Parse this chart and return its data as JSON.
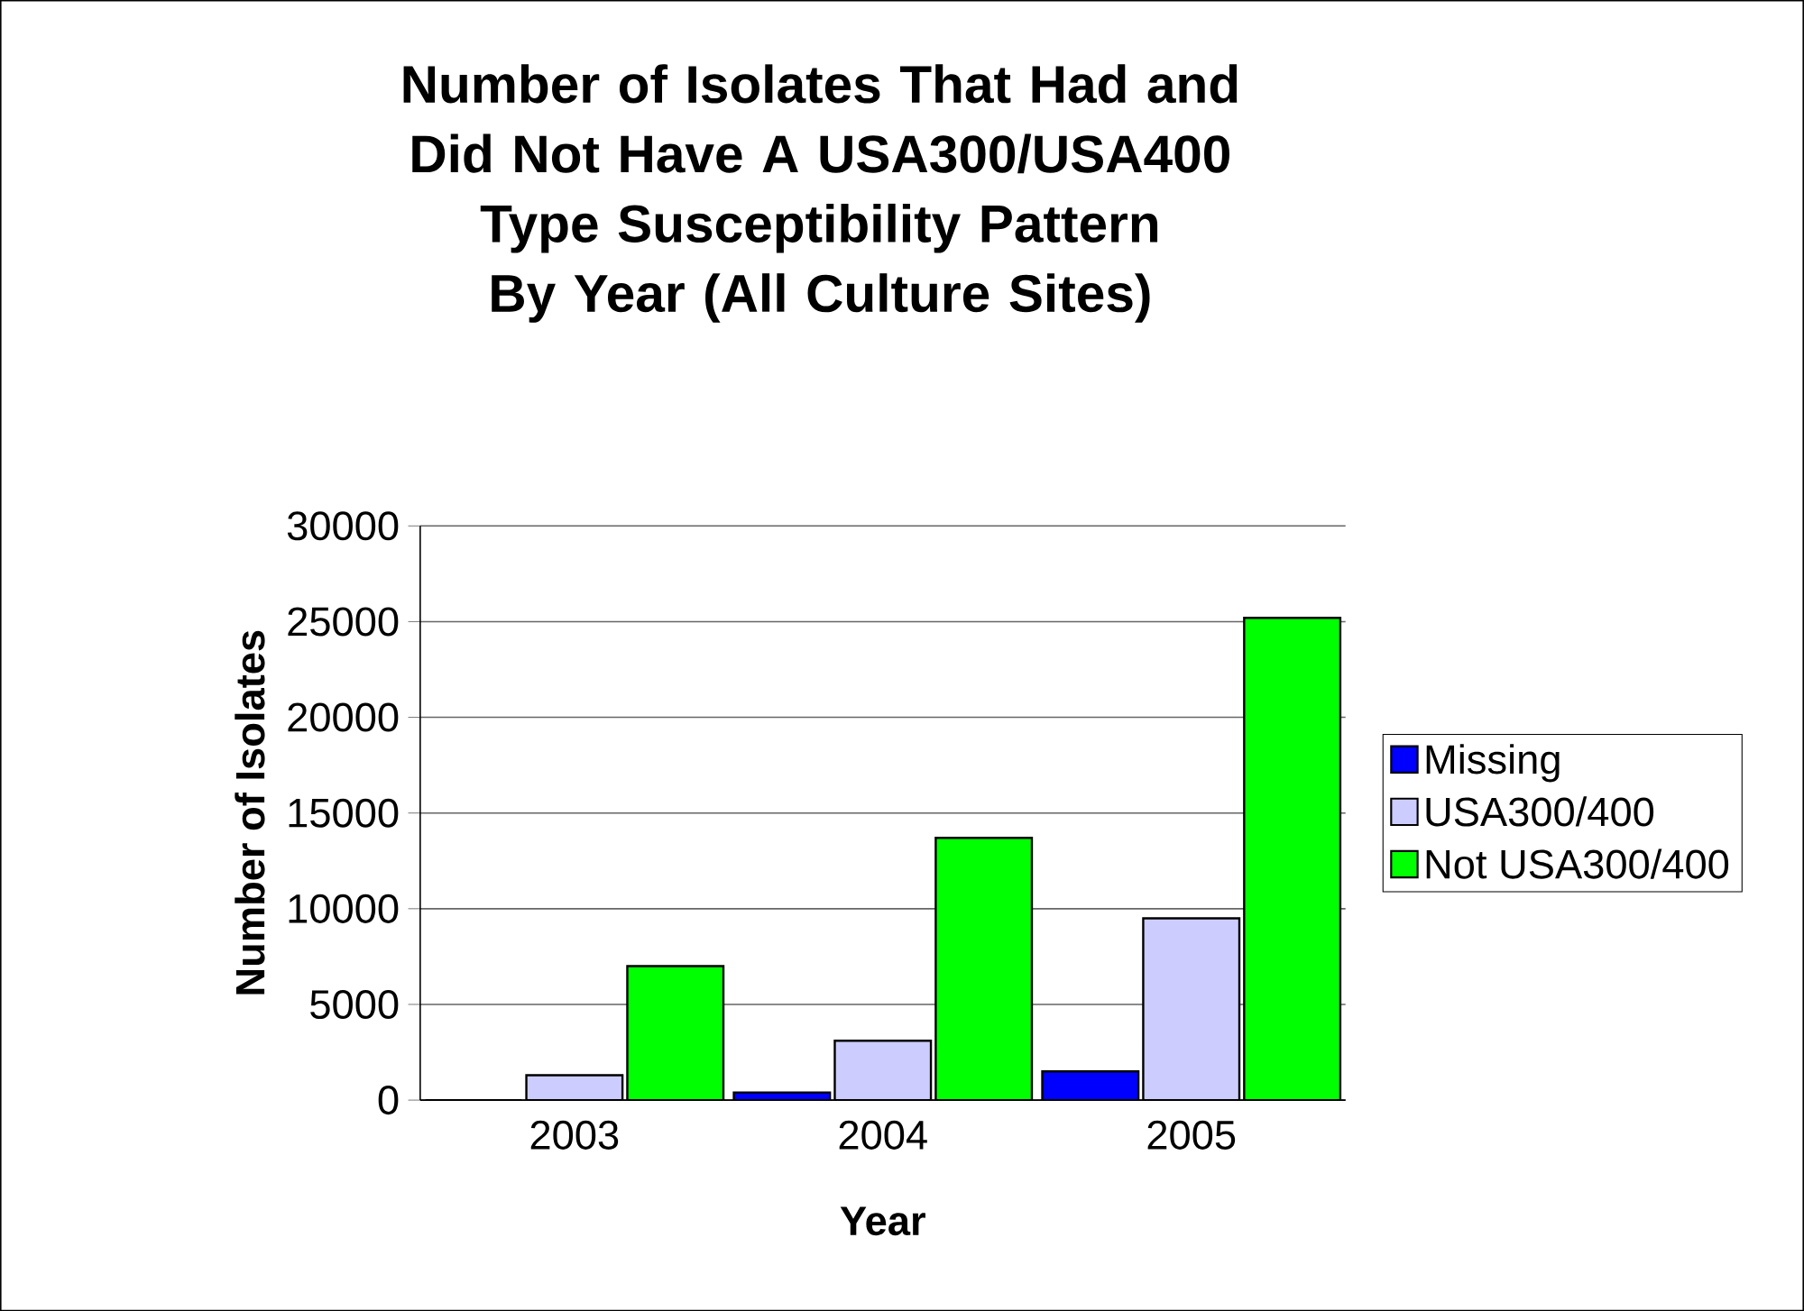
{
  "chart_data": {
    "type": "bar",
    "title": "Number of Isolates That Had and Did Not Have A USA300/USA400 Type Susceptibility Pattern By Year (All Culture Sites)",
    "xlabel": "Year",
    "ylabel": "Number of Isolates",
    "categories": [
      "2003",
      "2004",
      "2005"
    ],
    "series": [
      {
        "name": "Missing",
        "color": "#0000ff",
        "values": [
          0,
          400,
          1500
        ]
      },
      {
        "name": "USA300/400",
        "color": "#ccccff",
        "values": [
          1300,
          3100,
          9500
        ]
      },
      {
        "name": "Not USA300/400",
        "color": "#00ff00",
        "values": [
          7000,
          13700,
          25200
        ]
      }
    ],
    "ylim": [
      0,
      30000
    ],
    "yticks": [
      0,
      5000,
      10000,
      15000,
      20000,
      25000,
      30000
    ],
    "grid": "y",
    "legend": "right"
  }
}
